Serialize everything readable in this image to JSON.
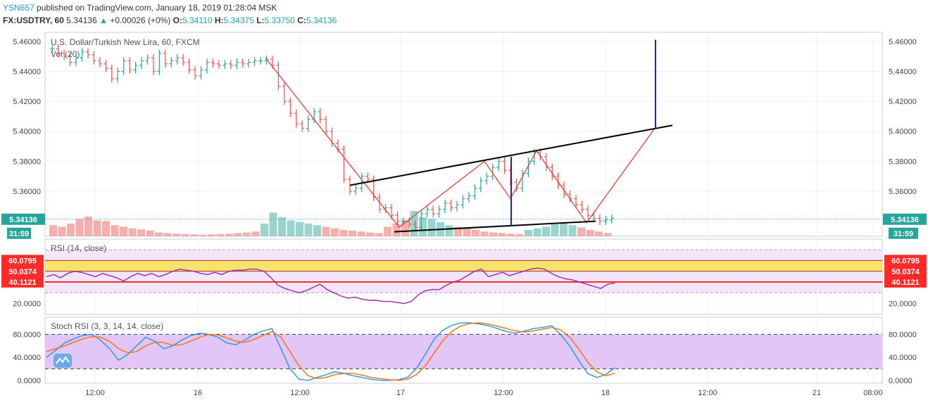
{
  "header": {
    "user": "YSN657",
    "published": "published on TradingView.com, January 18, 2019 01:28:04 MSK",
    "symbol": "FX:USDTRY, 60",
    "last": "5.34136",
    "change": "+0.00026 (+0%)",
    "change_arrow": "▲",
    "o_label": "O:",
    "o": "5.34110",
    "h_label": "H:",
    "h": "5.34375",
    "l_label": "L:",
    "l": "5.33750",
    "c_label": "C:",
    "c": "5.34136"
  },
  "main_legend": {
    "title": "U.S. Dollar/Turkish New Lira, 60, FXCM",
    "volume": "Vol (20)"
  },
  "rsi_legend": "RSI (14, close)",
  "stoch_legend": "Stoch RSI (3, 3, 14, 14, close)",
  "badges": {
    "price": "5.34136",
    "countdown": "31:59",
    "rsi_upper": "60.0795",
    "rsi_mid": "50.0374",
    "rsi_lower": "40.1121"
  },
  "colors": {
    "up": "#26a69a",
    "down": "#ef5350",
    "pattern": "#f23b3b",
    "trendline": "#000000",
    "target": "#1a1aff",
    "rsi": "#9c27b0",
    "rsi_band": "#f2e6fb",
    "yellow_zone": "#f5e469",
    "red_line": "#ff2a2a",
    "stoch_band": "#e1c6f7",
    "stoch_k": "#2196f3",
    "stoch_d": "#ff6d00",
    "price_badge": "#26a69a",
    "red_badge": "#ff2a2a"
  },
  "chart_data": [
    {
      "type": "candlestick",
      "title": "U.S. Dollar/Turkish New Lira, 60, FXCM",
      "ylim": [
        5.33,
        5.466
      ],
      "y_ticks": [
        "5.46000",
        "5.44000",
        "5.42000",
        "5.40000",
        "5.38000",
        "5.36000"
      ],
      "x_ticks": [
        "12:00",
        "16",
        "12:00",
        "17",
        "12:00",
        "18",
        "12:00",
        "21",
        "08:00"
      ],
      "last_price": 5.34136,
      "closes": [
        5.455,
        5.452,
        5.45,
        5.446,
        5.449,
        5.453,
        5.451,
        5.447,
        5.445,
        5.442,
        5.435,
        5.44,
        5.447,
        5.441,
        5.444,
        5.447,
        5.449,
        5.44,
        5.452,
        5.445,
        5.447,
        5.449,
        5.446,
        5.441,
        5.437,
        5.441,
        5.446,
        5.445,
        5.444,
        5.445,
        5.444,
        5.446,
        5.445,
        5.446,
        5.447,
        5.447,
        5.448,
        5.444,
        5.43,
        5.42,
        5.412,
        5.405,
        5.402,
        5.408,
        5.413,
        5.408,
        5.4,
        5.392,
        5.388,
        5.368,
        5.36,
        5.362,
        5.37,
        5.368,
        5.356,
        5.348,
        5.349,
        5.344,
        5.34,
        5.34,
        5.338,
        5.336,
        5.345,
        5.348,
        5.345,
        5.348,
        5.352,
        5.349,
        5.351,
        5.355,
        5.357,
        5.362,
        5.367,
        5.37,
        5.376,
        5.38,
        5.374,
        5.366,
        5.362,
        5.372,
        5.38,
        5.386,
        5.383,
        5.376,
        5.37,
        5.364,
        5.358,
        5.355,
        5.351,
        5.348,
        5.344,
        5.342,
        5.34,
        5.341,
        5.342
      ],
      "volume": [
        0.35,
        0.3,
        0.4,
        0.55,
        0.62,
        0.5,
        0.48,
        0.35,
        0.3,
        0.25,
        0.22,
        0.18,
        0.12,
        0.1,
        0.08,
        0.07,
        0.06,
        0.05,
        0.06,
        0.07,
        0.08,
        0.1,
        0.12,
        0.15,
        0.4,
        0.75,
        0.6,
        0.5,
        0.45,
        0.4,
        0.35,
        0.3,
        0.25,
        0.2,
        0.18,
        0.15,
        0.12,
        0.1,
        0.3,
        0.4,
        0.5,
        0.8,
        0.6,
        0.55,
        0.45,
        0.35,
        0.3,
        0.25,
        0.2,
        0.15,
        0.12,
        0.1,
        0.08,
        0.07,
        0.2,
        0.25,
        0.3,
        0.38,
        0.4,
        0.35,
        0.28,
        0.2,
        0.15,
        0.1
      ],
      "patterns": {
        "zigzag": [
          [
            5.449,
            5.336,
            5.38,
            5.355,
            5.387,
            5.339,
            5.402,
            5.461
          ]
        ],
        "upper_trendline": [
          5.364,
          5.404
        ],
        "lower_trendline": [
          5.333,
          5.34
        ]
      }
    },
    {
      "type": "line",
      "title": "RSI (14, close)",
      "ylim": [
        10,
        80
      ],
      "y_ticks": [
        "20.0000"
      ],
      "levels": [
        60.0795,
        50.0374,
        40.1121
      ],
      "values": [
        45,
        47,
        44,
        48,
        50,
        49,
        47,
        45,
        48,
        46,
        44,
        41,
        45,
        48,
        46,
        48,
        45,
        47,
        50,
        52,
        51,
        50,
        48,
        47,
        49,
        47,
        50,
        51,
        51,
        52,
        52,
        50,
        44,
        37,
        34,
        32,
        30,
        32,
        35,
        38,
        33,
        30,
        27,
        25,
        26,
        24,
        23,
        23,
        22,
        22,
        21,
        20,
        22,
        28,
        32,
        33,
        33,
        37,
        40,
        42,
        46,
        50,
        52,
        45,
        47,
        49,
        46,
        48,
        50,
        52,
        53,
        52,
        48,
        45,
        43,
        42,
        40,
        38,
        36,
        34,
        38,
        39
      ]
    },
    {
      "type": "line",
      "title": "Stoch RSI (3, 3, 14, 14, close)",
      "ylim": [
        -5,
        110
      ],
      "y_ticks": [
        "80.0000",
        "40.0000",
        "0.0000"
      ],
      "bands": [
        20,
        80
      ],
      "series": [
        {
          "key": "k",
          "values": [
            40,
            52,
            65,
            72,
            78,
            80,
            70,
            55,
            35,
            45,
            60,
            75,
            68,
            55,
            60,
            70,
            78,
            82,
            80,
            75,
            65,
            62,
            70,
            80,
            86,
            90,
            55,
            20,
            2,
            0,
            5,
            10,
            15,
            12,
            8,
            5,
            2,
            0,
            0,
            1,
            5,
            20,
            45,
            72,
            88,
            96,
            100,
            100,
            98,
            95,
            90,
            85,
            82,
            86,
            90,
            92,
            95,
            80,
            60,
            35,
            12,
            5,
            10,
            22
          ]
        },
        {
          "key": "d",
          "values": [
            50,
            55,
            60,
            66,
            72,
            76,
            75,
            68,
            55,
            48,
            50,
            60,
            66,
            66,
            61,
            62,
            68,
            75,
            80,
            79,
            74,
            68,
            66,
            71,
            78,
            85,
            75,
            50,
            25,
            8,
            3,
            5,
            10,
            12,
            12,
            9,
            5,
            3,
            1,
            0,
            2,
            10,
            25,
            48,
            70,
            86,
            95,
            99,
            100,
            98,
            94,
            90,
            86,
            84,
            86,
            89,
            92,
            88,
            75,
            55,
            32,
            15,
            8,
            12
          ]
        }
      ]
    }
  ]
}
